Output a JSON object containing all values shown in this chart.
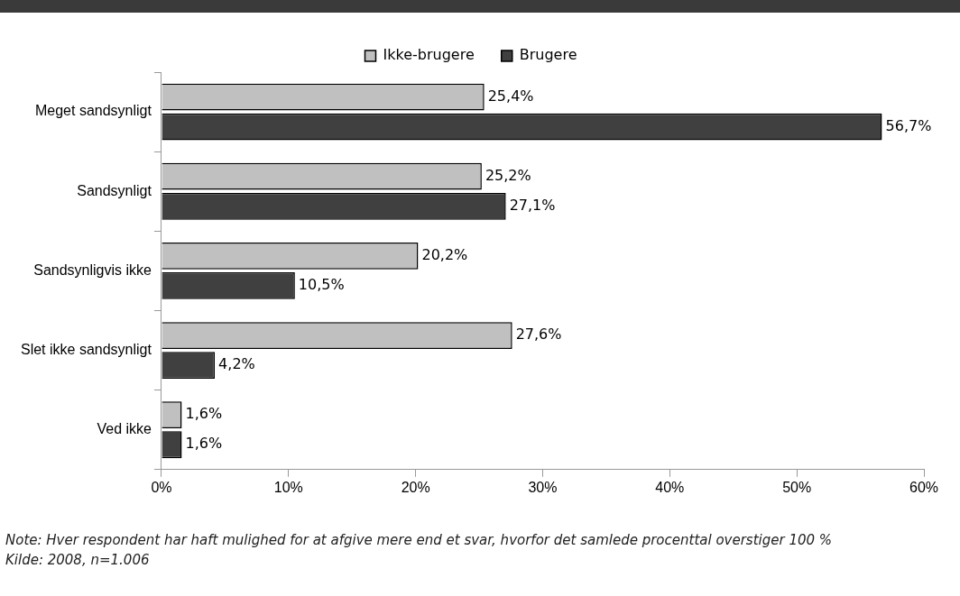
{
  "chart_data": {
    "type": "bar",
    "orientation": "horizontal",
    "categories": [
      "Meget sandsynligt",
      "Sandsynligt",
      "Sandsynligvis ikke",
      "Slet ikke sandsynligt",
      "Ved ikke"
    ],
    "series": [
      {
        "name": "Ikke-brugere",
        "color": "#c0c0c0",
        "values": [
          25.4,
          25.2,
          20.2,
          27.6,
          1.6
        ],
        "value_labels": [
          "25,4%",
          "25,2%",
          "20,2%",
          "27,6%",
          "1,6%"
        ]
      },
      {
        "name": "Brugere",
        "color": "#404040",
        "values": [
          56.7,
          27.1,
          10.5,
          4.2,
          1.6
        ],
        "value_labels": [
          "56,7%",
          "27,1%",
          "10,5%",
          "4,2%",
          "1,6%"
        ]
      }
    ],
    "xlim": [
      0,
      60
    ],
    "xticks": [
      {
        "value": 0,
        "label": "0%"
      },
      {
        "value": 10,
        "label": "10%"
      },
      {
        "value": 20,
        "label": "20%"
      },
      {
        "value": 30,
        "label": "30%"
      },
      {
        "value": 40,
        "label": "40%"
      },
      {
        "value": 50,
        "label": "50%"
      },
      {
        "value": 60,
        "label": "60%"
      }
    ],
    "grid": false,
    "legend": "top",
    "annotations": [
      "Note: Hver respondent har haft mulighed for at afgive mere end et svar, hvorfor det samlede procenttal overstiger 100 %",
      "Kilde: 2008, n=1.006"
    ]
  }
}
